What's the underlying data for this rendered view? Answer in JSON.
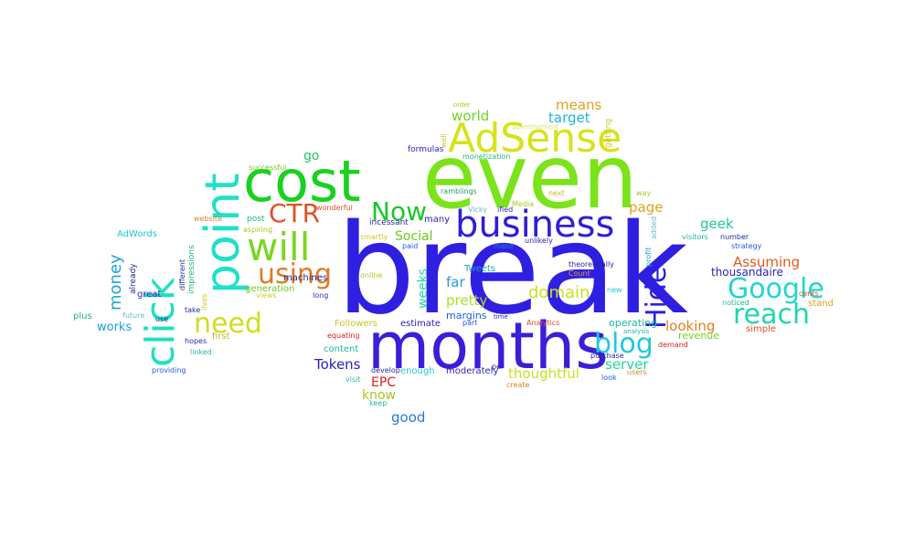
{
  "words": [
    {
      "text": "break",
      "color": "#2f1fe0"
    },
    {
      "text": "even",
      "color": "#7ae31a"
    },
    {
      "text": "months",
      "color": "#3a1fd8"
    },
    {
      "text": "cost",
      "color": "#19d11f"
    },
    {
      "text": "point",
      "color": "#1fe0c8"
    },
    {
      "text": "AdSense",
      "color": "#d7e21a"
    },
    {
      "text": "click",
      "color": "#1fe0c0"
    },
    {
      "text": "business",
      "color": "#2d1fd8"
    },
    {
      "text": "will",
      "color": "#7ad61f"
    },
    {
      "text": "Google",
      "color": "#1fd6d0"
    },
    {
      "text": "reach",
      "color": "#1fd6b0"
    },
    {
      "text": "need",
      "color": "#d1dd1f"
    },
    {
      "text": "using",
      "color": "#e07a1f"
    },
    {
      "text": "Now",
      "color": "#19c82a"
    },
    {
      "text": "CTR",
      "color": "#e0501f"
    },
    {
      "text": "blog",
      "color": "#1fc8e0"
    },
    {
      "text": "Hide",
      "color": "#2a1fe0"
    },
    {
      "text": "domain",
      "color": "#c8e01f"
    },
    {
      "text": "money",
      "color": "#1fa3d6"
    },
    {
      "text": "Assuming",
      "color": "#e05a1f"
    },
    {
      "text": "means",
      "color": "#e0a01f"
    },
    {
      "text": "target",
      "color": "#1fb4e0"
    },
    {
      "text": "world",
      "color": "#6ad61f"
    },
    {
      "text": "pretty",
      "color": "#a6e01f"
    },
    {
      "text": "far",
      "color": "#1f9ae0"
    },
    {
      "text": "page",
      "color": "#e0a01f"
    },
    {
      "text": "geek",
      "color": "#1fc8a0"
    },
    {
      "text": "looking",
      "color": "#e0801f"
    },
    {
      "text": "thoughtful",
      "color": "#c8e01f"
    },
    {
      "text": "server",
      "color": "#1fd6a0"
    },
    {
      "text": "Tokens",
      "color": "#2a1fb8"
    },
    {
      "text": "good",
      "color": "#1f7ad6"
    },
    {
      "text": "know",
      "color": "#a6c81f"
    },
    {
      "text": "EPC",
      "color": "#d6201f"
    },
    {
      "text": "Social",
      "color": "#6ac81f"
    },
    {
      "text": "weeks",
      "color": "#1fd6b0"
    },
    {
      "text": "go",
      "color": "#1fc860"
    },
    {
      "text": "works",
      "color": "#1f9ae0"
    },
    {
      "text": "thousandaire",
      "color": "#2a1fb8"
    },
    {
      "text": "operating",
      "color": "#1fb8a0"
    },
    {
      "text": "revenue",
      "color": "#6ad61f"
    },
    {
      "text": "margins",
      "color": "#1f5ae0"
    },
    {
      "text": "estimate",
      "color": "#2a1fb8"
    },
    {
      "text": "enough",
      "color": "#1fc8d6"
    },
    {
      "text": "moderately",
      "color": "#2a1fb8"
    },
    {
      "text": "Followers",
      "color": "#c8c81f"
    },
    {
      "text": "content",
      "color": "#1fb8a0"
    },
    {
      "text": "machines",
      "color": "#1f2a9a"
    },
    {
      "text": "generation",
      "color": "#6ac81f"
    },
    {
      "text": "great",
      "color": "#2a1fb8"
    },
    {
      "text": "plus",
      "color": "#1fb87a"
    },
    {
      "text": "first",
      "color": "#c8b81f"
    },
    {
      "text": "Tweets",
      "color": "#1fa3c8"
    },
    {
      "text": "many",
      "color": "#2a1fb8"
    },
    {
      "text": "incessant",
      "color": "#1f2a9a"
    },
    {
      "text": "post",
      "color": "#1fb87a"
    },
    {
      "text": "AdWords",
      "color": "#1fc8d6"
    },
    {
      "text": "wonderful",
      "color": "#e0501f"
    },
    {
      "text": "aspiring",
      "color": "#a6c81f"
    },
    {
      "text": "website",
      "color": "#e0801f"
    },
    {
      "text": "successful",
      "color": "#6ac81f"
    },
    {
      "text": "formulas",
      "color": "#2a1fb8"
    },
    {
      "text": "ramblings",
      "color": "#1fa060"
    },
    {
      "text": "monetization",
      "color": "#1fb87a"
    },
    {
      "text": "Media",
      "color": "#a6c81f"
    },
    {
      "text": "next",
      "color": "#c8b81f"
    },
    {
      "text": "Vicky",
      "color": "#6ab8c8"
    },
    {
      "text": "ified",
      "color": "#2a1fb8"
    },
    {
      "text": "paid",
      "color": "#1f5ae0"
    },
    {
      "text": "make",
      "color": "#1f7ad6"
    },
    {
      "text": "unlikely",
      "color": "#2a1fb8"
    },
    {
      "text": "smartly",
      "color": "#c8c81f"
    },
    {
      "text": "Count",
      "color": "#e0a01f"
    },
    {
      "text": "theoretically",
      "color": "#1f2a9a"
    },
    {
      "text": "online",
      "color": "#a6c81f"
    },
    {
      "text": "profit",
      "color": "#1f9ae0"
    },
    {
      "text": "visitors",
      "color": "#1fb8a0"
    },
    {
      "text": "number",
      "color": "#1f2a9a"
    },
    {
      "text": "strategy",
      "color": "#1f5ae0"
    },
    {
      "text": "new",
      "color": "#1fc8d6"
    },
    {
      "text": "noticed",
      "color": "#1fb87a"
    },
    {
      "text": "cents",
      "color": "#e0501f"
    },
    {
      "text": "stand",
      "color": "#e0a01f"
    },
    {
      "text": "simple",
      "color": "#e0501f"
    },
    {
      "text": "demand",
      "color": "#d6201f"
    },
    {
      "text": "Analytics",
      "color": "#e0501f"
    },
    {
      "text": "time",
      "color": "#2a1fb8"
    },
    {
      "text": "part",
      "color": "#1f5ae0"
    },
    {
      "text": "per",
      "color": "#2a1fb8"
    },
    {
      "text": "purchase",
      "color": "#1f2a9a"
    },
    {
      "text": "analysis",
      "color": "#1fb8a0"
    },
    {
      "text": "users",
      "color": "#e0801f"
    },
    {
      "text": "look",
      "color": "#1f5ae0"
    },
    {
      "text": "create",
      "color": "#e0801f"
    },
    {
      "text": "develop",
      "color": "#1f2a9a"
    },
    {
      "text": "visit",
      "color": "#1fb8a0"
    },
    {
      "text": "keep",
      "color": "#1fb8a0"
    },
    {
      "text": "equating",
      "color": "#d6201f"
    },
    {
      "text": "long",
      "color": "#2a1fb8"
    },
    {
      "text": "views",
      "color": "#c8c81f"
    },
    {
      "text": "linked",
      "color": "#1fb8a0"
    },
    {
      "text": "hopes",
      "color": "#2a1fb8"
    },
    {
      "text": "providing",
      "color": "#1f5ae0"
    },
    {
      "text": "take",
      "color": "#1f2a9a"
    },
    {
      "text": "use",
      "color": "#1f2a9a"
    },
    {
      "text": "future",
      "color": "#6ab8c8"
    },
    {
      "text": "already",
      "color": "#1f2a9a"
    },
    {
      "text": "different",
      "color": "#1f2a9a"
    },
    {
      "text": "impressions",
      "color": "#1fb87a"
    },
    {
      "text": "lives",
      "color": "#c8c81f"
    },
    {
      "text": "order",
      "color": "#a6c81f"
    },
    {
      "text": "well",
      "color": "#c8c81f"
    },
    {
      "text": "advertisement",
      "color": "#e0e060"
    },
    {
      "text": "getting",
      "color": "#c8c81f"
    },
    {
      "text": "way",
      "color": "#a6c81f"
    },
    {
      "text": "added",
      "color": "#6ab8c8"
    }
  ]
}
